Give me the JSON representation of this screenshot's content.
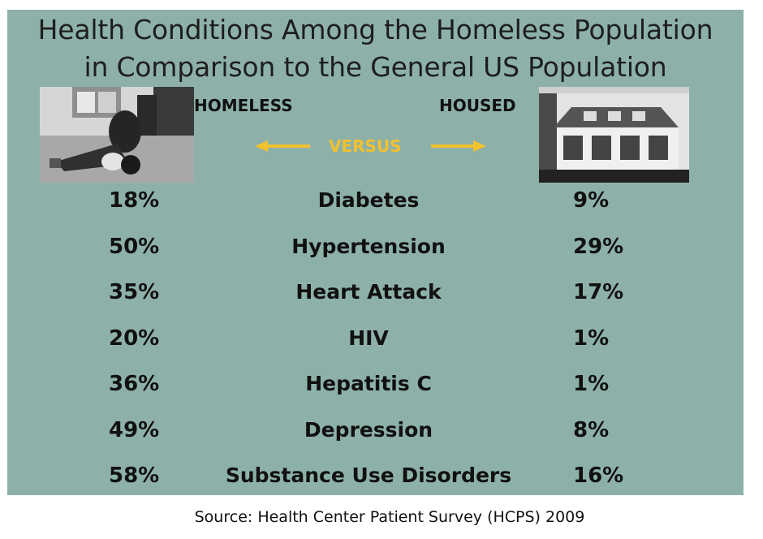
{
  "title_line1": "Health Conditions Among the Homeless Population",
  "title_line2": "in Comparison to the General US Population",
  "label_left": "HOMELESS",
  "label_right": "HOUSED",
  "versus": "VERSUS",
  "source": "Source: Health Center Patient Survey (HCPS) 2009",
  "colors": {
    "background": "#8db1a9",
    "accent": "#f2c12e",
    "text": "#111111"
  },
  "images": {
    "left": "homeless-person-photo",
    "right": "house-photo"
  },
  "chart_data": {
    "type": "table",
    "columns": [
      "HOMELESS",
      "",
      "HOUSED"
    ],
    "rows": [
      {
        "condition": "Diabetes",
        "homeless": "18%",
        "housed": "9%"
      },
      {
        "condition": "Hypertension",
        "homeless": "50%",
        "housed": "29%"
      },
      {
        "condition": "Heart Attack",
        "homeless": "35%",
        "housed": "17%"
      },
      {
        "condition": "HIV",
        "homeless": "20%",
        "housed": "1%"
      },
      {
        "condition": "Hepatitis C",
        "homeless": "36%",
        "housed": "1%"
      },
      {
        "condition": "Depression",
        "homeless": "49%",
        "housed": "8%"
      },
      {
        "condition": "Substance Use Disorders",
        "homeless": "58%",
        "housed": "16%"
      }
    ]
  }
}
